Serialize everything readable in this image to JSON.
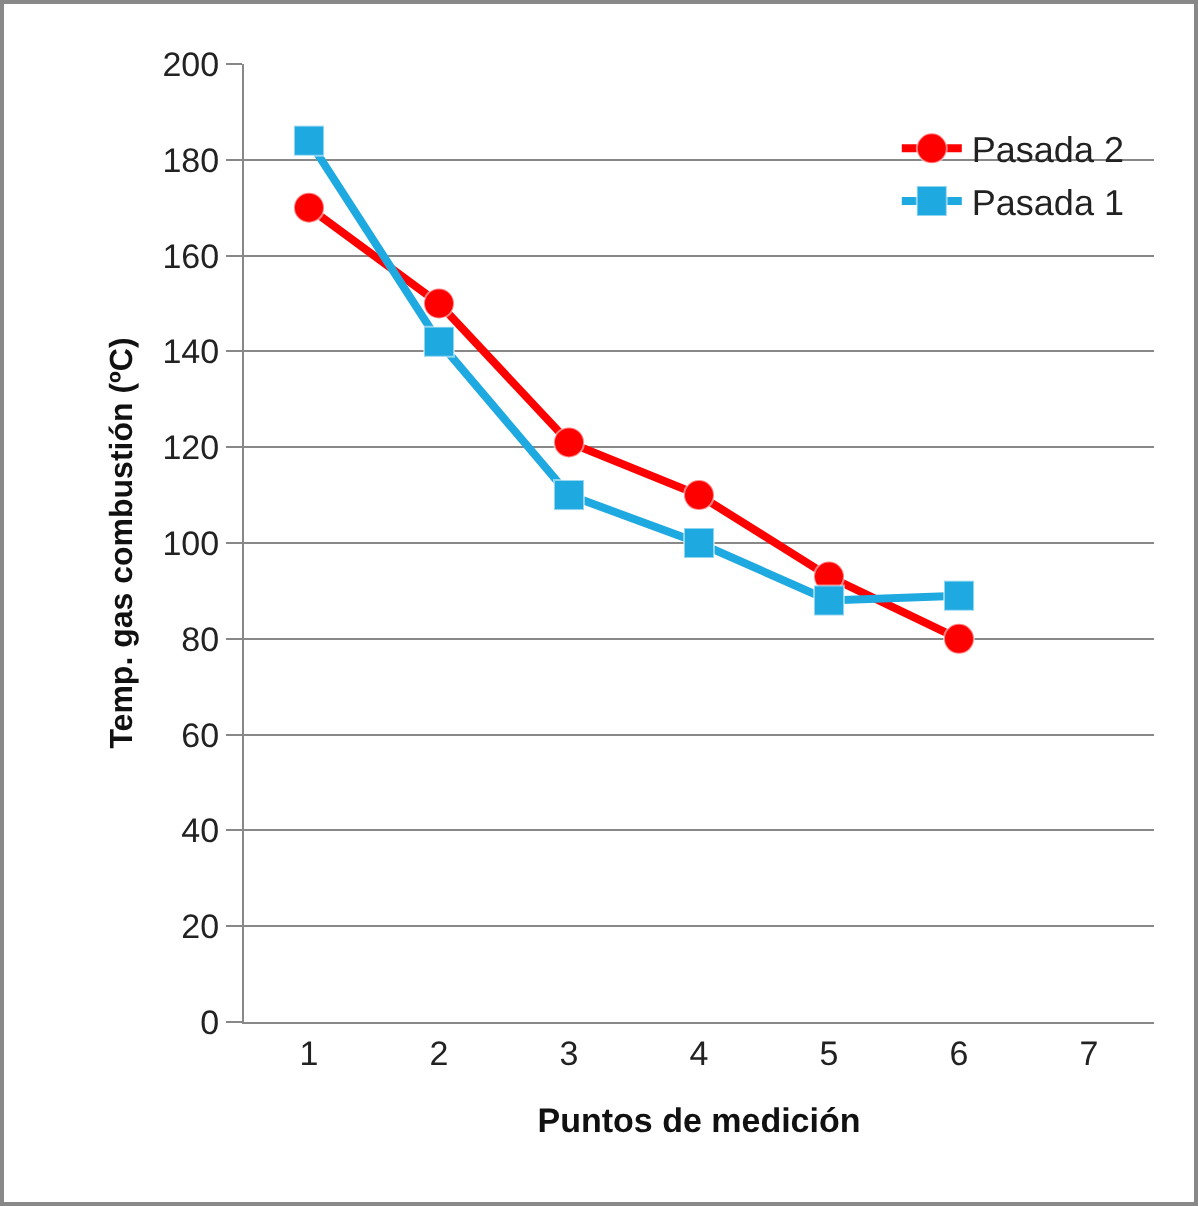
{
  "chart_data": {
    "type": "line",
    "xlabel": "Puntos de medición",
    "ylabel": "Temp. gas combustión (ºC)",
    "categories": [
      "1",
      "2",
      "3",
      "4",
      "5",
      "6",
      "7"
    ],
    "series": [
      {
        "name": "Pasada 2",
        "color": "#ff0000",
        "marker": "circle",
        "values": [
          170,
          150,
          121,
          110,
          93,
          80,
          null
        ]
      },
      {
        "name": "Pasada 1",
        "color": "#1fa9e1",
        "marker": "square",
        "values": [
          184,
          142,
          110,
          100,
          88,
          89,
          null
        ]
      }
    ],
    "ylim": [
      0,
      200
    ],
    "yticks": [
      0,
      20,
      40,
      60,
      80,
      100,
      120,
      140,
      160,
      180,
      200
    ],
    "grid": "y",
    "legend": "top right"
  }
}
